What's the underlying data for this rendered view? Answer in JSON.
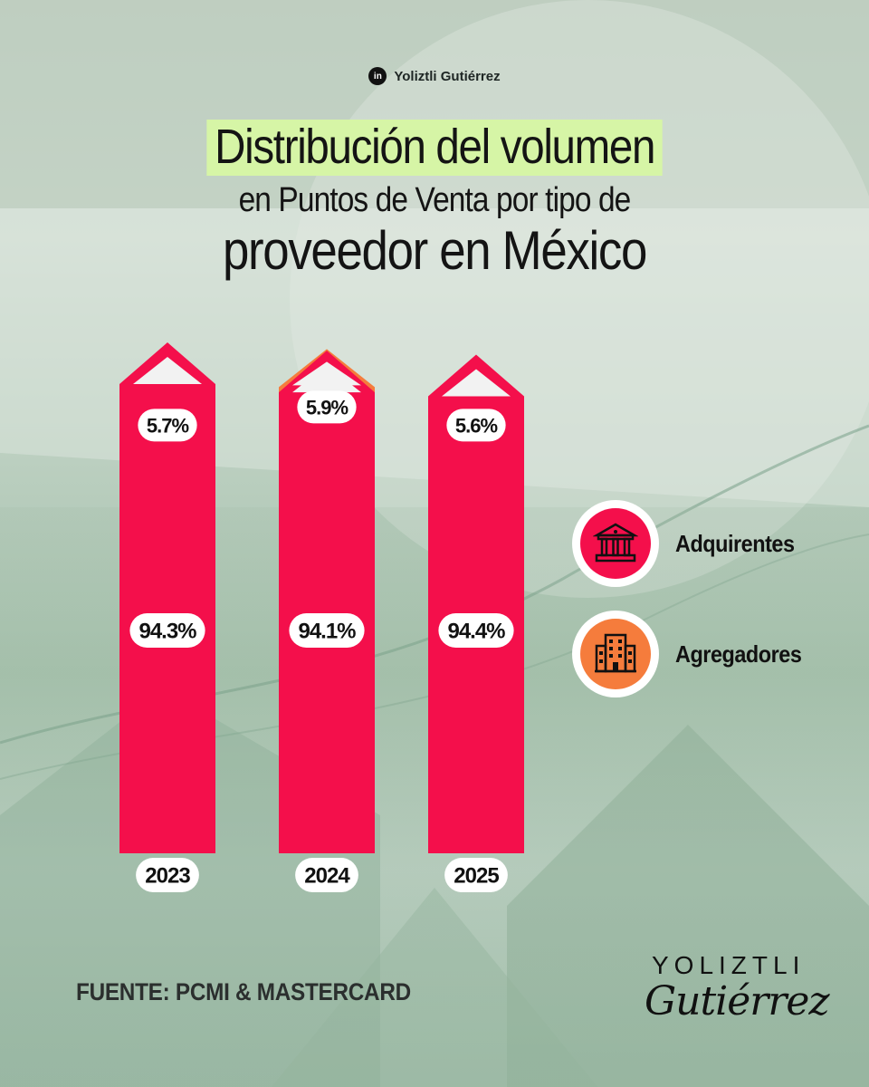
{
  "author": {
    "icon": "linkedin-icon",
    "icon_text": "in",
    "name": "Yoliztli Gutiérrez"
  },
  "title": {
    "line1": "Distribución del volumen",
    "line2": "en Puntos de Venta por tipo de",
    "line3": "proveedor en México"
  },
  "chart_data": {
    "type": "bar",
    "stacked": true,
    "unit": "%",
    "categories": [
      "2023",
      "2024",
      "2025"
    ],
    "series": [
      {
        "name": "Adquirentes",
        "values": [
          94.3,
          94.1,
          94.4
        ],
        "labels": [
          "94.3%",
          "94.1%",
          "94.4%"
        ],
        "color": "#f40f4b"
      },
      {
        "name": "Agregadores",
        "values": [
          5.7,
          5.9,
          5.6
        ],
        "labels": [
          "5.7%",
          "5.9%",
          "5.6%"
        ],
        "color": "#f57c3c"
      }
    ],
    "legend_position": "right",
    "grid": false
  },
  "legend": [
    {
      "label": "Adquirentes",
      "icon": "bank-building-icon",
      "color": "#f40f4b"
    },
    {
      "label": "Agregadores",
      "icon": "office-building-icon",
      "color": "#f57c3c"
    }
  ],
  "source": "FUENTE: PCMI & MASTERCARD",
  "signature": {
    "top": "YOLIZTLI",
    "bottom": "Gutiérrez"
  }
}
